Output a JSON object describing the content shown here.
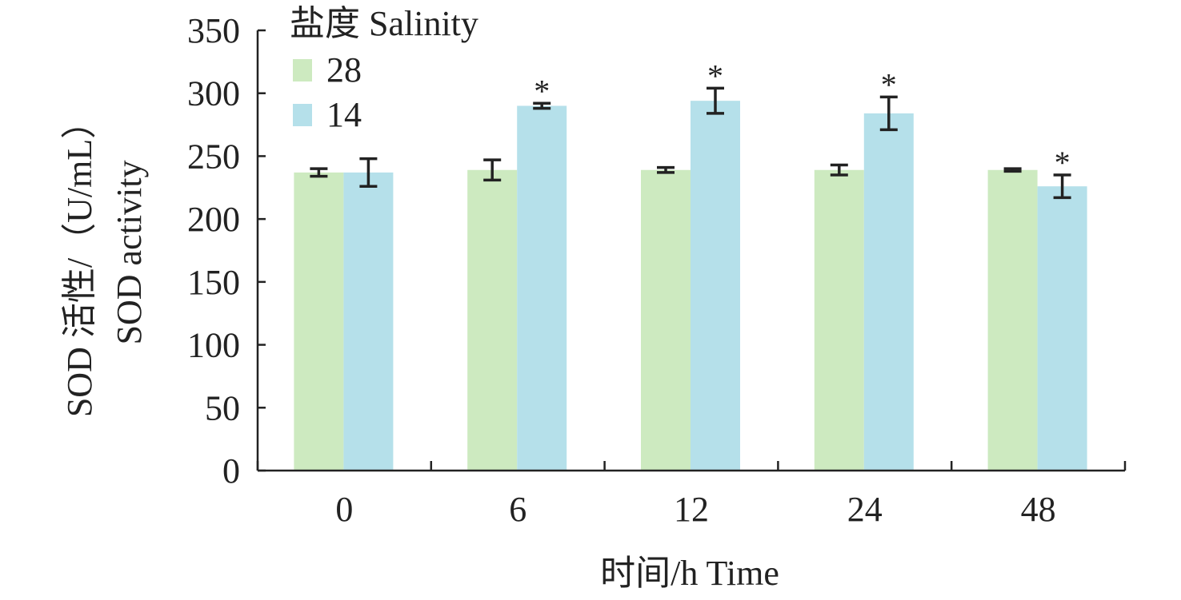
{
  "chart_data": {
    "type": "bar",
    "xlabel": "时间/h Time",
    "ylabel_line1": "SOD 活性/（U/mL）",
    "ylabel_line2": "SOD activity",
    "ylim": [
      0,
      350
    ],
    "yticks": [
      0,
      50,
      100,
      150,
      200,
      250,
      300,
      350
    ],
    "categories": [
      "0",
      "6",
      "12",
      "24",
      "48"
    ],
    "legend_title": "盐度 Salinity",
    "legend_position": "top-left",
    "grid": false,
    "series": [
      {
        "name": "28",
        "color": "#cdeac0",
        "values": [
          237,
          239,
          239,
          239,
          239
        ],
        "errors": [
          3,
          8,
          2,
          4,
          1
        ],
        "significance": [
          "",
          "",
          "",
          "",
          ""
        ]
      },
      {
        "name": "14",
        "color": "#b5e0ea",
        "values": [
          237,
          290,
          294,
          284,
          226
        ],
        "errors": [
          11,
          2,
          10,
          13,
          9
        ],
        "significance": [
          "",
          "*",
          "*",
          "*",
          "*"
        ]
      }
    ]
  }
}
